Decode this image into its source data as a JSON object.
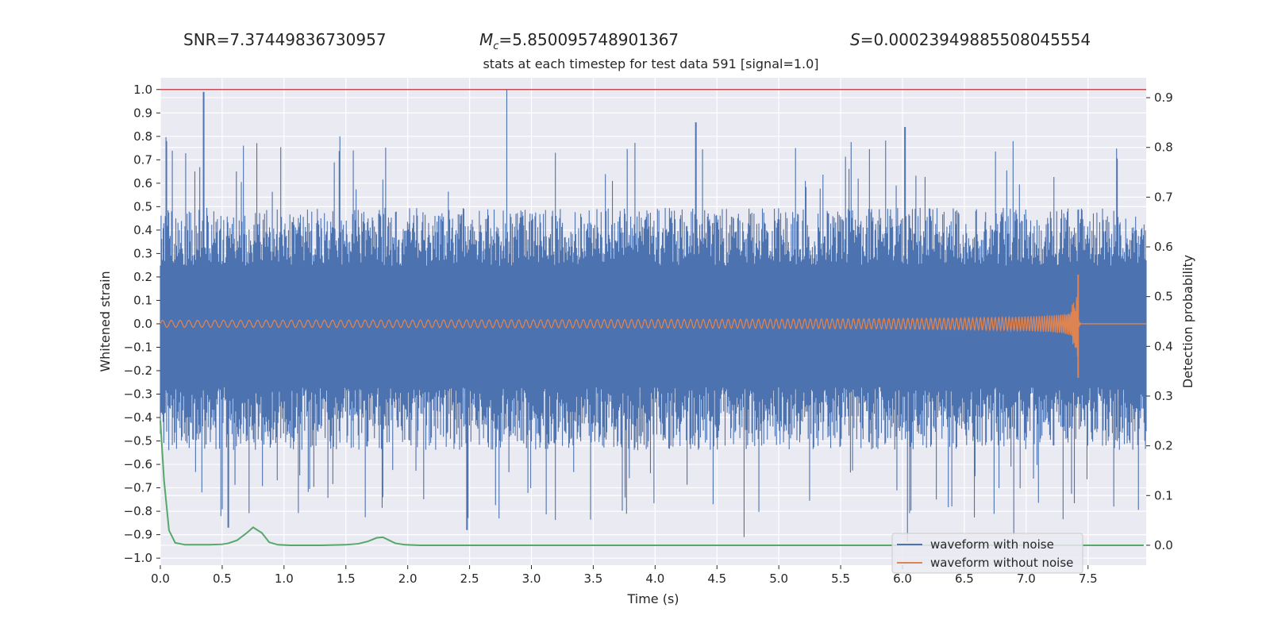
{
  "header": {
    "snr_label": "SNR",
    "snr_value": "7.37449836730957",
    "mc_symbol": "M",
    "mc_subscript": "c",
    "mc_value": "5.850095748901367",
    "s_symbol": "S",
    "s_value": "0.00023949885508045554"
  },
  "chart_data": {
    "type": "line",
    "title": "stats at each timestep for test data 591 [signal=1.0]",
    "xlabel": "Time (s)",
    "ylabel": "Whitened strain",
    "y2label": "Detection probability",
    "xlim": [
      0.0,
      7.97
    ],
    "ylim": [
      -1.03,
      1.05
    ],
    "y2lim": [
      -0.04,
      0.94
    ],
    "xticks": [
      0.0,
      0.5,
      1.0,
      1.5,
      2.0,
      2.5,
      3.0,
      3.5,
      4.0,
      4.5,
      5.0,
      5.5,
      6.0,
      6.5,
      7.0,
      7.5
    ],
    "xtick_labels": [
      "0.0",
      "0.5",
      "1.0",
      "1.5",
      "2.0",
      "2.5",
      "3.0",
      "3.5",
      "4.0",
      "4.5",
      "5.0",
      "5.5",
      "6.0",
      "6.5",
      "7.0",
      "7.5"
    ],
    "yticks": [
      1.0,
      0.9,
      0.8,
      0.7,
      0.6,
      0.5,
      0.4,
      0.3,
      0.2,
      0.1,
      0.0,
      -0.1,
      -0.2,
      -0.3,
      -0.4,
      -0.5,
      -0.6,
      -0.7,
      -0.8,
      -0.9,
      -1.0
    ],
    "ytick_labels": [
      "1.0",
      "0.9",
      "0.8",
      "0.7",
      "0.6",
      "0.5",
      "0.4",
      "0.3",
      "0.2",
      "0.1",
      "0.0",
      "−0.1",
      "−0.2",
      "−0.3",
      "−0.4",
      "−0.5",
      "−0.6",
      "−0.7",
      "−0.8",
      "−0.9",
      "−1.0"
    ],
    "y2ticks": [
      0.9,
      0.8,
      0.7,
      0.6,
      0.5,
      0.4,
      0.3,
      0.2,
      0.1,
      0.0
    ],
    "y2tick_labels": [
      "0.9",
      "0.8",
      "0.7",
      "0.6",
      "0.5",
      "0.4",
      "0.3",
      "0.2",
      "0.1",
      "0.0"
    ],
    "threshold": {
      "value": 1.0,
      "color": "#c44e52"
    },
    "series": [
      {
        "name": "waveform with noise",
        "color": "#4c72b0",
        "amplitude_typical": 0.45,
        "peaks_up": [
          [
            0.35,
            0.99
          ],
          [
            2.8,
            1.0
          ],
          [
            4.33,
            0.86
          ],
          [
            6.02,
            0.84
          ],
          [
            1.45,
            0.8
          ],
          [
            0.05,
            0.78
          ]
        ],
        "peaks_down": [
          [
            4.72,
            -0.91
          ],
          [
            6.04,
            -0.93
          ],
          [
            6.9,
            -0.9
          ],
          [
            0.55,
            -0.87
          ],
          [
            2.48,
            -0.88
          ]
        ],
        "gap_range": [
          -0.1,
          0.13
        ]
      },
      {
        "name": "waveform without noise",
        "color": "#dd8452",
        "start_amplitude": 0.015,
        "merger_time": 7.42,
        "merger_max": 0.21,
        "merger_min": -0.23
      },
      {
        "name": "detection probability",
        "color": "#55a868",
        "axis": "right",
        "x": [
          0.0,
          0.03,
          0.07,
          0.12,
          0.2,
          0.3,
          0.4,
          0.5,
          0.55,
          0.62,
          0.7,
          0.75,
          0.82,
          0.88,
          0.95,
          1.05,
          1.3,
          1.5,
          1.6,
          1.68,
          1.75,
          1.8,
          1.85,
          1.9,
          1.98,
          2.1,
          3.0,
          4.0,
          5.0,
          6.0,
          7.0,
          7.95
        ],
        "values": [
          0.25,
          0.13,
          0.03,
          0.005,
          0.001,
          0.001,
          0.001,
          0.002,
          0.004,
          0.01,
          0.025,
          0.036,
          0.025,
          0.006,
          0.001,
          0.0,
          0.0,
          0.001,
          0.003,
          0.008,
          0.015,
          0.016,
          0.01,
          0.004,
          0.001,
          0.0,
          0.0,
          0.0,
          0.0,
          0.0,
          0.0,
          0.0
        ]
      }
    ],
    "legend": {
      "location": "lower-right",
      "entries": [
        "waveform with noise",
        "waveform without noise"
      ]
    },
    "style": {
      "background": "#eaeaf2",
      "grid_color": "#ffffff"
    }
  }
}
